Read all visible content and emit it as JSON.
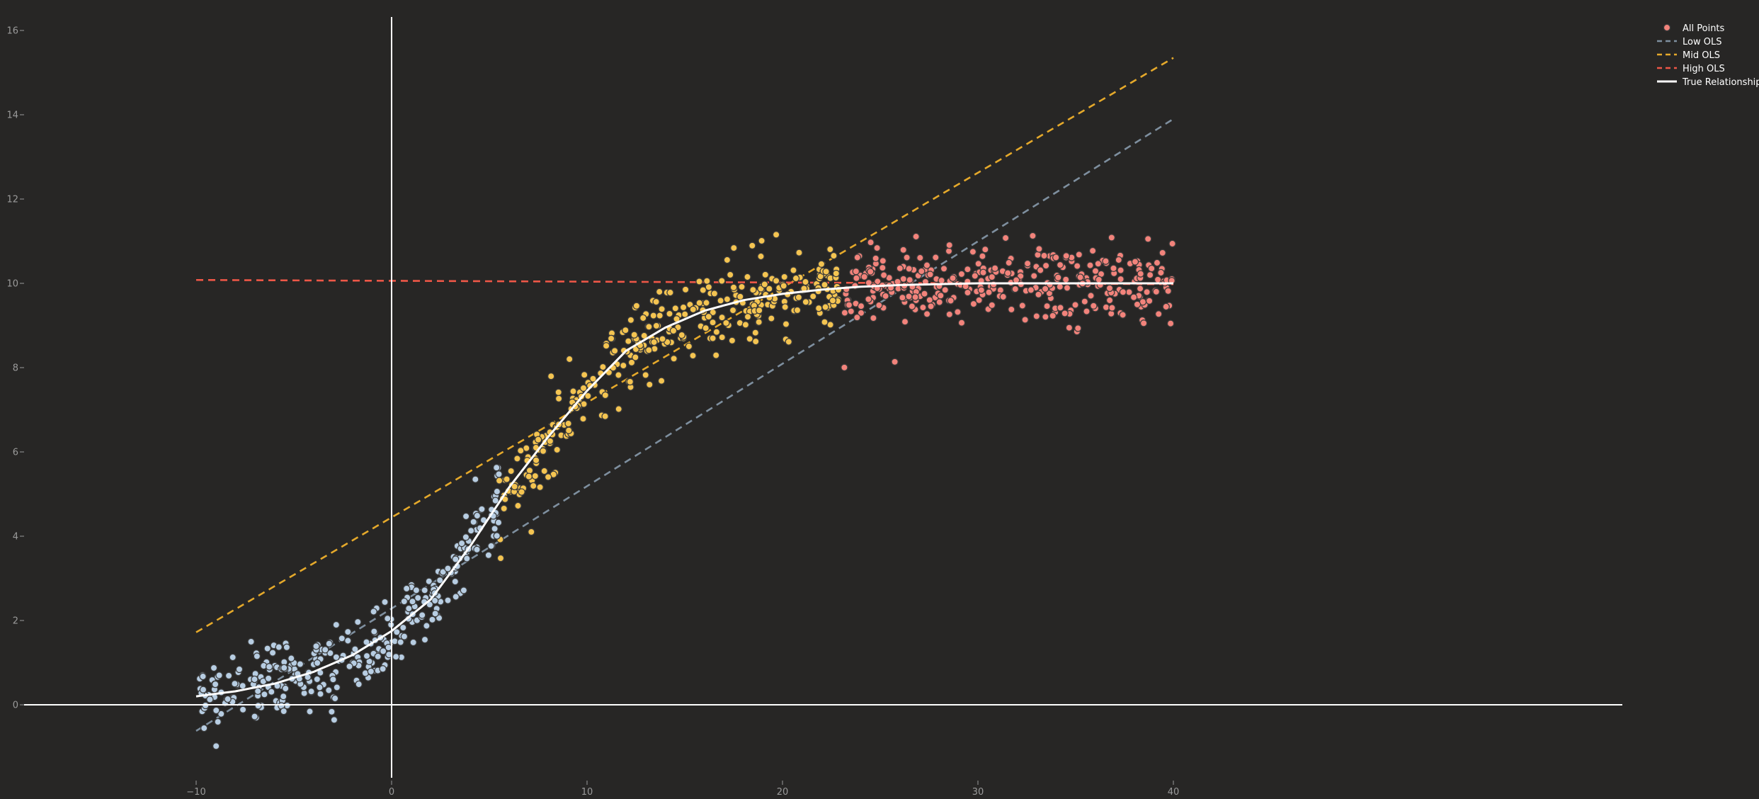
{
  "chart_data": {
    "type": "scatter",
    "title": "",
    "xlabel": "",
    "ylabel": "",
    "xlim": [
      -13,
      43
    ],
    "ylim": [
      -1.8,
      16.4
    ],
    "grid": false,
    "legend_position": "top-right",
    "x_ticks": [
      -10,
      0,
      10,
      20,
      30,
      40
    ],
    "y_ticks": [
      0,
      2,
      4,
      6,
      8,
      10,
      12,
      14,
      16
    ],
    "x_tick_labels": [
      "−10",
      "0",
      "10",
      "20",
      "30",
      "40"
    ],
    "y_tick_labels": [
      "0",
      "2",
      "4",
      "6",
      "8",
      "10",
      "12",
      "14",
      "16"
    ],
    "colors": {
      "background": "#272625",
      "axis": "#ffffff",
      "low": "#b7cde2",
      "mid": "#f4c451",
      "high": "#f2837b",
      "low_ols": "#7e8f9f",
      "mid_ols": "#e5a92b",
      "high_ols": "#ee5747",
      "true": "#ffffff"
    },
    "legend": [
      {
        "label": "All Points",
        "kind": "marker",
        "color": "#f2837b"
      },
      {
        "label": "Low OLS",
        "kind": "dash",
        "color": "#7e8f9f"
      },
      {
        "label": "Mid OLS",
        "kind": "dash",
        "color": "#e5a92b"
      },
      {
        "label": "High OLS",
        "kind": "dash",
        "color": "#ee5747"
      },
      {
        "label": "True Relationship",
        "kind": "solid",
        "color": "#ffffff"
      }
    ],
    "series": [
      {
        "name": "All Points",
        "type": "scatter",
        "x_range": [
          -10,
          40
        ],
        "n_points": 1000,
        "noise_sd": 0.45,
        "groups": [
          {
            "x_range": [
              -10,
              5.5
            ],
            "color": "#b7cde2"
          },
          {
            "x_range": [
              5.5,
              23
            ],
            "color": "#f4c451"
          },
          {
            "x_range": [
              23,
              40
            ],
            "color": "#f2837b"
          }
        ]
      },
      {
        "name": "Low OLS",
        "type": "line",
        "dash": true,
        "points": [
          [
            -10,
            -0.62
          ],
          [
            40,
            13.9
          ]
        ]
      },
      {
        "name": "Mid OLS",
        "type": "line",
        "dash": true,
        "points": [
          [
            -10,
            1.72
          ],
          [
            40,
            15.35
          ]
        ]
      },
      {
        "name": "High OLS",
        "type": "line",
        "dash": true,
        "points": [
          [
            -10,
            10.08
          ],
          [
            40,
            9.98
          ]
        ]
      },
      {
        "name": "True Relationship",
        "type": "line",
        "dash": false,
        "points": [
          [
            -10,
            0.2
          ],
          [
            -8,
            0.32
          ],
          [
            -6,
            0.5
          ],
          [
            -4,
            0.78
          ],
          [
            -2,
            1.18
          ],
          [
            0,
            1.75
          ],
          [
            2,
            2.5
          ],
          [
            4,
            3.75
          ],
          [
            6,
            5.15
          ],
          [
            8,
            6.35
          ],
          [
            10,
            7.45
          ],
          [
            12,
            8.4
          ],
          [
            14,
            8.95
          ],
          [
            16,
            9.35
          ],
          [
            18,
            9.6
          ],
          [
            20,
            9.75
          ],
          [
            22,
            9.85
          ],
          [
            24,
            9.92
          ],
          [
            26,
            9.96
          ],
          [
            28,
            9.98
          ],
          [
            30,
            10.0
          ],
          [
            35,
            10.0
          ],
          [
            40,
            10.0
          ]
        ]
      }
    ]
  }
}
